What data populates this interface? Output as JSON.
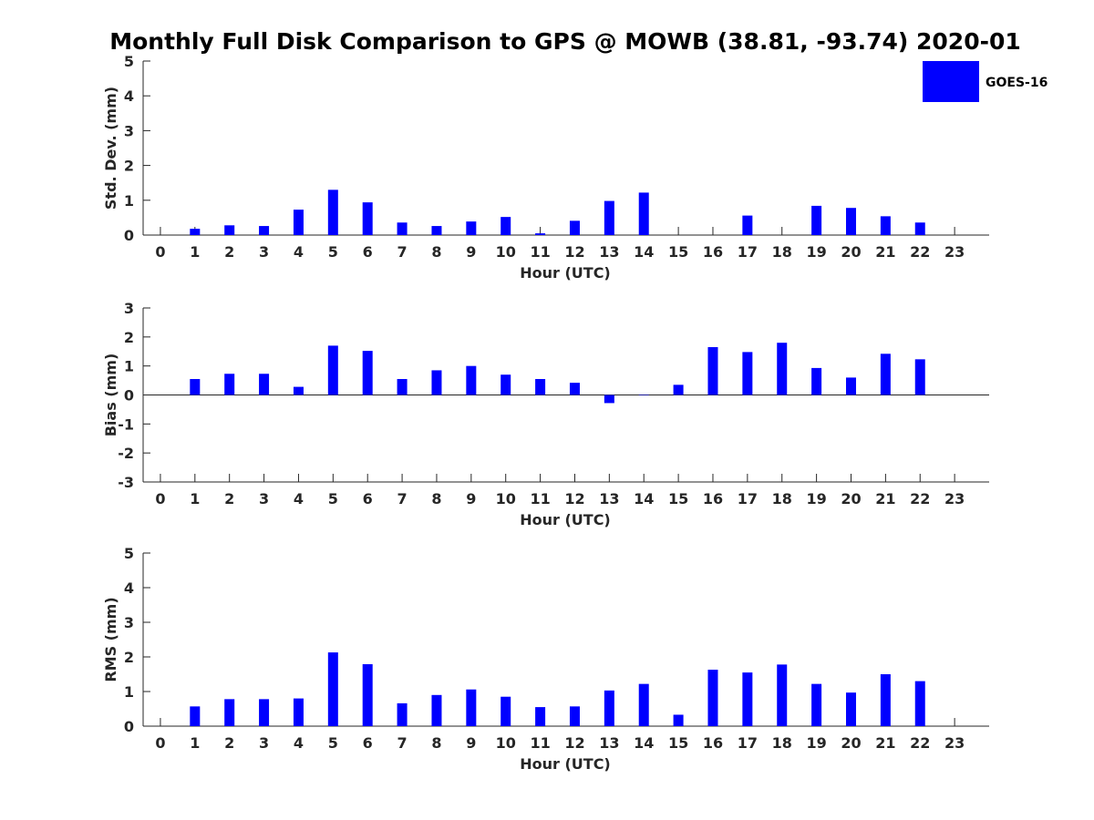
{
  "figure": {
    "title": "Monthly Full Disk Comparison to GPS @ MOWB (38.81, -93.74) 2020-01"
  },
  "legend": {
    "label": "GOES-16",
    "color": "#0000ff",
    "location": "top-right"
  },
  "chart_data": [
    {
      "type": "bar",
      "id": "std",
      "title": "",
      "xlabel": "Hour (UTC)",
      "ylabel": "Std. Dev. (mm)",
      "ylim": [
        0,
        5
      ],
      "yticks": [
        0,
        1,
        2,
        3,
        4,
        5
      ],
      "categories": [
        0,
        1,
        2,
        3,
        4,
        5,
        6,
        7,
        8,
        9,
        10,
        11,
        12,
        13,
        14,
        15,
        16,
        17,
        18,
        19,
        20,
        21,
        22,
        23
      ],
      "series": [
        {
          "name": "GOES-16",
          "color": "#0000ff",
          "values": [
            null,
            0.18,
            0.28,
            0.26,
            0.73,
            1.3,
            0.94,
            0.36,
            0.26,
            0.39,
            0.52,
            0.05,
            0.41,
            0.98,
            1.22,
            null,
            null,
            0.56,
            null,
            0.84,
            0.78,
            0.54,
            0.36,
            null
          ]
        }
      ]
    },
    {
      "type": "bar",
      "id": "bias",
      "title": "",
      "xlabel": "Hour (UTC)",
      "ylabel": "Bias (mm)",
      "ylim": [
        -3,
        3
      ],
      "yticks": [
        -3,
        -2,
        -1,
        0,
        1,
        2,
        3
      ],
      "categories": [
        0,
        1,
        2,
        3,
        4,
        5,
        6,
        7,
        8,
        9,
        10,
        11,
        12,
        13,
        14,
        15,
        16,
        17,
        18,
        19,
        20,
        21,
        22,
        23
      ],
      "series": [
        {
          "name": "GOES-16",
          "color": "#0000ff",
          "values": [
            null,
            0.55,
            0.73,
            0.73,
            0.28,
            1.7,
            1.52,
            0.55,
            0.85,
            1.0,
            0.7,
            0.55,
            0.42,
            -0.28,
            0.0,
            0.35,
            1.65,
            1.48,
            1.8,
            0.93,
            0.6,
            1.42,
            1.23,
            null
          ]
        }
      ]
    },
    {
      "type": "bar",
      "id": "rms",
      "title": "",
      "xlabel": "Hour (UTC)",
      "ylabel": "RMS (mm)",
      "ylim": [
        0,
        5
      ],
      "yticks": [
        0,
        1,
        2,
        3,
        4,
        5
      ],
      "categories": [
        0,
        1,
        2,
        3,
        4,
        5,
        6,
        7,
        8,
        9,
        10,
        11,
        12,
        13,
        14,
        15,
        16,
        17,
        18,
        19,
        20,
        21,
        22,
        23
      ],
      "series": [
        {
          "name": "GOES-16",
          "color": "#0000ff",
          "values": [
            null,
            0.57,
            0.78,
            0.78,
            0.8,
            2.13,
            1.79,
            0.66,
            0.9,
            1.06,
            0.85,
            0.55,
            0.57,
            1.03,
            1.22,
            0.33,
            1.63,
            1.55,
            1.78,
            1.22,
            0.97,
            1.5,
            1.3,
            null
          ]
        }
      ]
    }
  ]
}
